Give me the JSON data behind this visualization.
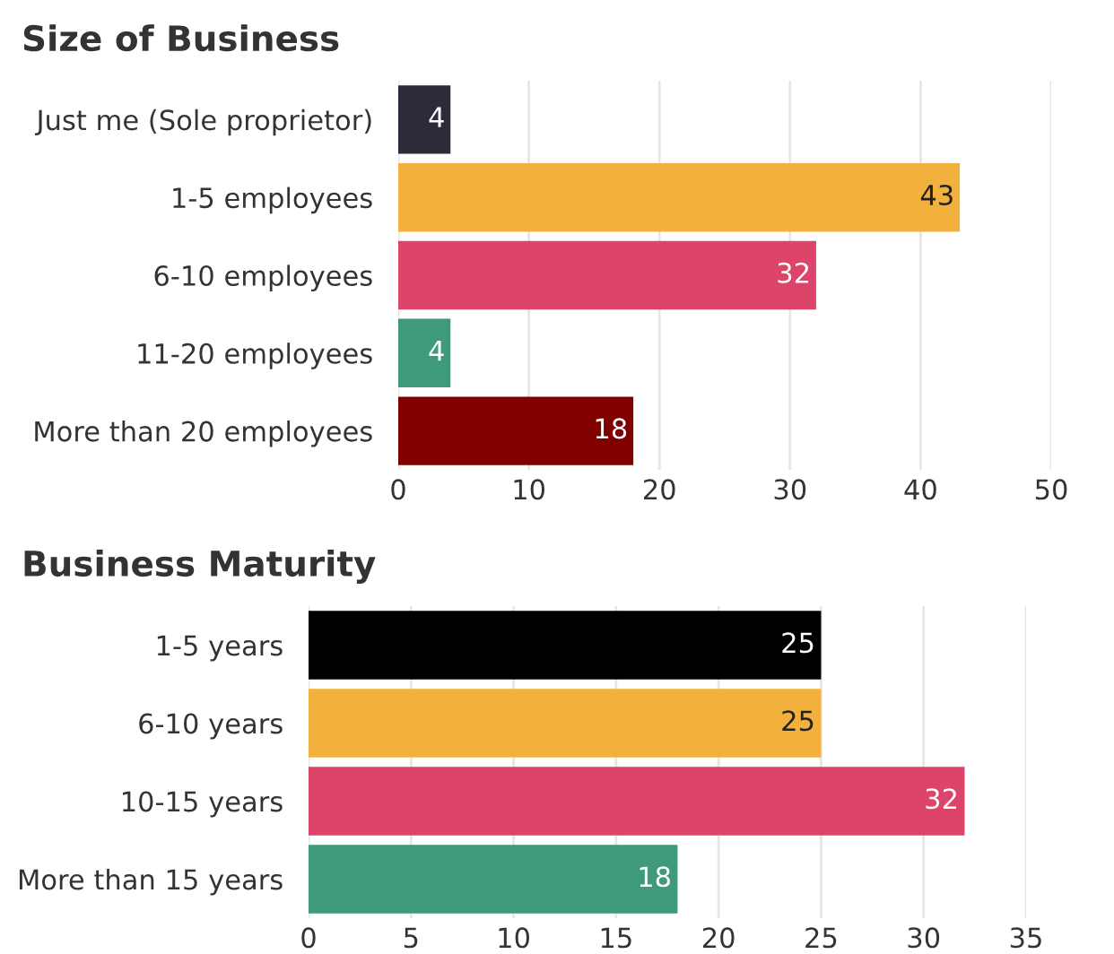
{
  "chart_data": [
    {
      "type": "bar",
      "orientation": "horizontal",
      "title": "Size of Business",
      "categories": [
        "Just me (Sole proprietor)",
        "1-5 employees",
        "6-10 employees",
        "11-20 employees",
        "More than 20 employees"
      ],
      "values": [
        4,
        43,
        32,
        4,
        18
      ],
      "colors": [
        "#2d2a3a",
        "#f2b13c",
        "#dc4569",
        "#3e9a78",
        "#800000"
      ],
      "xlim": [
        0,
        50
      ],
      "xticks": [
        0,
        10,
        20,
        30,
        40,
        50
      ],
      "grid": "x",
      "data_labels": true,
      "legend": false
    },
    {
      "type": "bar",
      "orientation": "horizontal",
      "title": "Business Maturity",
      "categories": [
        "1-5 years",
        "6-10 years",
        "10-15 years",
        "More than 15 years"
      ],
      "values": [
        25,
        25,
        32,
        18
      ],
      "colors": [
        "#000000",
        "#f2b13c",
        "#dc4569",
        "#3e9a78"
      ],
      "xlim": [
        0,
        35
      ],
      "xticks": [
        0,
        5,
        10,
        15,
        20,
        25,
        30,
        35
      ],
      "grid": "x",
      "data_labels": true,
      "legend": false
    }
  ]
}
